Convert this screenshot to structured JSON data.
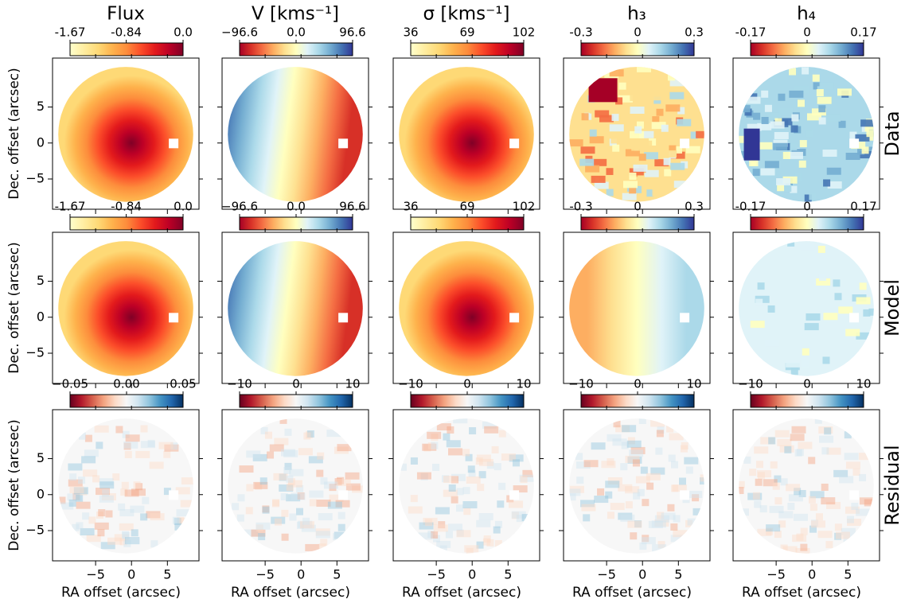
{
  "chart_data": [
    {
      "type": "heatmap",
      "title": "Flux",
      "ylabel": "Dec. offset (arcsec)",
      "xlim": [
        -11,
        9.4
      ],
      "ylim": [
        -9.2,
        11.8
      ],
      "xticks": [
        -5,
        0,
        5
      ],
      "yticks": [
        {
          "value": -5,
          "label": "−5"
        },
        0,
        5
      ],
      "colorbar": {
        "lim": [
          -1.67,
          0
        ],
        "ticks": [
          -1.67,
          -0.84,
          {
            "value": 0,
            "label": "0.0"
          }
        ],
        "colors": [
          "#ffffcc",
          "#ffeda0",
          "#fed976",
          "#feb24c",
          "#fd8d3c",
          "#fc4e2a",
          "#e31a1c",
          "#bd0026",
          "#800026"
        ]
      }
    },
    {
      "type": "heatmap",
      "title": "V [kms⁻¹]",
      "xlim": [
        -11,
        9.4
      ],
      "ylim": [
        -9.2,
        11.8
      ],
      "xticks": [
        -5,
        0,
        5
      ],
      "yticks": [
        -5,
        0,
        5
      ],
      "colorbar": {
        "lim": [
          -96.6,
          96.6
        ],
        "ticks": [
          {
            "value": -96.6,
            "label": "−96.6"
          },
          {
            "value": 0,
            "label": "0.0"
          },
          96.6
        ],
        "colors": [
          "#a50026",
          "#d73027",
          "#f46d43",
          "#fdae61",
          "#fee090",
          "#ffffbf",
          "#e0f3f8",
          "#abd9e9",
          "#74add1",
          "#4575b4",
          "#313695"
        ]
      }
    },
    {
      "type": "heatmap",
      "title": "σ [kms⁻¹]",
      "xlim": [
        -11,
        9.4
      ],
      "ylim": [
        -9.2,
        11.8
      ],
      "xticks": [
        -5,
        0,
        5
      ],
      "yticks": [
        -5,
        0,
        5
      ],
      "colorbar": {
        "lim": [
          36,
          102
        ],
        "ticks": [
          36,
          69,
          102
        ],
        "colors": [
          "#ffffcc",
          "#ffeda0",
          "#fed976",
          "#feb24c",
          "#fd8d3c",
          "#fc4e2a",
          "#e31a1c",
          "#bd0026",
          "#800026"
        ]
      }
    },
    {
      "type": "heatmap",
      "title": "h₃",
      "xlim": [
        -11,
        9.4
      ],
      "ylim": [
        -9.2,
        11.8
      ],
      "xticks": [
        -5,
        0,
        5
      ],
      "yticks": [
        -5,
        0,
        5
      ],
      "colorbar": {
        "lim": [
          -0.3,
          0.3
        ],
        "ticks": [
          -0.3,
          0,
          0.3
        ],
        "colors": [
          "#a50026",
          "#d73027",
          "#f46d43",
          "#fdae61",
          "#fee090",
          "#ffffbf",
          "#e0f3f8",
          "#abd9e9",
          "#74add1",
          "#4575b4",
          "#313695"
        ]
      }
    },
    {
      "type": "heatmap",
      "title": "h₄",
      "row_label": "Data",
      "xlim": [
        -11,
        9.4
      ],
      "ylim": [
        -9.2,
        11.8
      ],
      "xticks": [
        -5,
        0,
        5
      ],
      "yticks": [
        -5,
        0,
        5
      ],
      "colorbar": {
        "lim": [
          -0.17,
          0.17
        ],
        "ticks": [
          -0.17,
          0,
          0.17
        ],
        "colors": [
          "#a50026",
          "#d73027",
          "#f46d43",
          "#fdae61",
          "#fee090",
          "#ffffbf",
          "#e0f3f8",
          "#abd9e9",
          "#74add1",
          "#4575b4",
          "#313695"
        ]
      }
    },
    {
      "type": "heatmap",
      "ylabel": "Dec. offset (arcsec)",
      "xlim": [
        -11,
        9.4
      ],
      "ylim": [
        -9.2,
        11.8
      ],
      "xticks": [
        -5,
        0,
        5
      ],
      "yticks": [
        {
          "value": -5,
          "label": "−5"
        },
        0,
        5
      ],
      "colorbar": {
        "lim": [
          -1.67,
          0
        ],
        "ticks": [
          -1.67,
          -0.84,
          {
            "value": 0,
            "label": "0.0"
          }
        ],
        "colors": [
          "#ffffcc",
          "#ffeda0",
          "#fed976",
          "#feb24c",
          "#fd8d3c",
          "#fc4e2a",
          "#e31a1c",
          "#bd0026",
          "#800026"
        ]
      }
    },
    {
      "type": "heatmap",
      "xlim": [
        -11,
        9.4
      ],
      "ylim": [
        -9.2,
        11.8
      ],
      "xticks": [
        -5,
        0,
        5
      ],
      "yticks": [
        -5,
        0,
        5
      ],
      "colorbar": {
        "lim": [
          -96.6,
          96.6
        ],
        "ticks": [
          {
            "value": -96.6,
            "label": "−96.6"
          },
          {
            "value": 0,
            "label": "0.0"
          },
          96.6
        ],
        "colors": [
          "#a50026",
          "#d73027",
          "#f46d43",
          "#fdae61",
          "#fee090",
          "#ffffbf",
          "#e0f3f8",
          "#abd9e9",
          "#74add1",
          "#4575b4",
          "#313695"
        ]
      }
    },
    {
      "type": "heatmap",
      "xlim": [
        -11,
        9.4
      ],
      "ylim": [
        -9.2,
        11.8
      ],
      "xticks": [
        -5,
        0,
        5
      ],
      "yticks": [
        -5,
        0,
        5
      ],
      "colorbar": {
        "lim": [
          36,
          102
        ],
        "ticks": [
          36,
          69,
          102
        ],
        "colors": [
          "#ffffcc",
          "#ffeda0",
          "#fed976",
          "#feb24c",
          "#fd8d3c",
          "#fc4e2a",
          "#e31a1c",
          "#bd0026",
          "#800026"
        ]
      }
    },
    {
      "type": "heatmap",
      "xlim": [
        -11,
        9.4
      ],
      "ylim": [
        -9.2,
        11.8
      ],
      "xticks": [
        -5,
        0,
        5
      ],
      "yticks": [
        -5,
        0,
        5
      ],
      "colorbar": {
        "lim": [
          -0.3,
          0.3
        ],
        "ticks": [
          -0.3,
          0,
          0.3
        ],
        "colors": [
          "#a50026",
          "#d73027",
          "#f46d43",
          "#fdae61",
          "#fee090",
          "#ffffbf",
          "#e0f3f8",
          "#abd9e9",
          "#74add1",
          "#4575b4",
          "#313695"
        ]
      }
    },
    {
      "type": "heatmap",
      "row_label": "Model",
      "xlim": [
        -11,
        9.4
      ],
      "ylim": [
        -9.2,
        11.8
      ],
      "xticks": [
        -5,
        0,
        5
      ],
      "yticks": [
        -5,
        0,
        5
      ],
      "colorbar": {
        "lim": [
          -0.17,
          0.17
        ],
        "ticks": [
          -0.17,
          0,
          0.17
        ],
        "colors": [
          "#a50026",
          "#d73027",
          "#f46d43",
          "#fdae61",
          "#fee090",
          "#ffffbf",
          "#e0f3f8",
          "#abd9e9",
          "#74add1",
          "#4575b4",
          "#313695"
        ]
      }
    },
    {
      "type": "heatmap",
      "ylabel": "Dec. offset (arcsec)",
      "xlabel": "RA offset (arcsec)",
      "xlim": [
        -11,
        9.4
      ],
      "ylim": [
        -9.2,
        11.8
      ],
      "xticks": [
        {
          "value": -5,
          "label": "−5"
        },
        0,
        5
      ],
      "yticks": [
        {
          "value": -5,
          "label": "−5"
        },
        0,
        5
      ],
      "colorbar": {
        "lim": [
          -0.05,
          0.05
        ],
        "ticks": [
          {
            "value": -0.05,
            "label": "−0.05"
          },
          {
            "value": 0,
            "label": "0.00"
          },
          0.05
        ],
        "colors": [
          "#67001f",
          "#b2182b",
          "#d6604d",
          "#f4a582",
          "#fddbc7",
          "#f7f7f7",
          "#d1e5f0",
          "#92c5de",
          "#4393c3",
          "#2166ac",
          "#053061"
        ]
      }
    },
    {
      "type": "heatmap",
      "xlabel": "RA offset (arcsec)",
      "xlim": [
        -11,
        9.4
      ],
      "ylim": [
        -9.2,
        11.8
      ],
      "xticks": [
        {
          "value": -5,
          "label": "−5"
        },
        0,
        5
      ],
      "yticks": [
        -5,
        0,
        5
      ],
      "colorbar": {
        "lim": [
          -10,
          10
        ],
        "ticks": [
          {
            "value": -10,
            "label": "−10"
          },
          0,
          10
        ],
        "colors": [
          "#67001f",
          "#b2182b",
          "#d6604d",
          "#f4a582",
          "#fddbc7",
          "#f7f7f7",
          "#d1e5f0",
          "#92c5de",
          "#4393c3",
          "#2166ac",
          "#053061"
        ]
      }
    },
    {
      "type": "heatmap",
      "xlabel": "RA offset (arcsec)",
      "xlim": [
        -11,
        9.4
      ],
      "ylim": [
        -9.2,
        11.8
      ],
      "xticks": [
        {
          "value": -5,
          "label": "−5"
        },
        0,
        5
      ],
      "yticks": [
        -5,
        0,
        5
      ],
      "colorbar": {
        "lim": [
          -10,
          10
        ],
        "ticks": [
          {
            "value": -10,
            "label": "−10"
          },
          0,
          10
        ],
        "colors": [
          "#67001f",
          "#b2182b",
          "#d6604d",
          "#f4a582",
          "#fddbc7",
          "#f7f7f7",
          "#d1e5f0",
          "#92c5de",
          "#4393c3",
          "#2166ac",
          "#053061"
        ]
      }
    },
    {
      "type": "heatmap",
      "xlabel": "RA offset (arcsec)",
      "xlim": [
        -11,
        9.4
      ],
      "ylim": [
        -9.2,
        11.8
      ],
      "xticks": [
        {
          "value": -5,
          "label": "−5"
        },
        0,
        5
      ],
      "yticks": [
        -5,
        0,
        5
      ],
      "colorbar": {
        "lim": [
          -10,
          10
        ],
        "ticks": [
          {
            "value": -10,
            "label": "−10"
          },
          0,
          10
        ],
        "colors": [
          "#67001f",
          "#b2182b",
          "#d6604d",
          "#f4a582",
          "#fddbc7",
          "#f7f7f7",
          "#d1e5f0",
          "#92c5de",
          "#4393c3",
          "#2166ac",
          "#053061"
        ]
      }
    },
    {
      "type": "heatmap",
      "row_label": "Residual",
      "xlabel": "RA offset (arcsec)",
      "xlim": [
        -11,
        9.4
      ],
      "ylim": [
        -9.2,
        11.8
      ],
      "xticks": [
        {
          "value": -5,
          "label": "−5"
        },
        0,
        5
      ],
      "yticks": [
        -5,
        0,
        5
      ],
      "colorbar": {
        "lim": [
          -10,
          10
        ],
        "ticks": [
          {
            "value": -10,
            "label": "−10"
          },
          0,
          10
        ],
        "colors": [
          "#67001f",
          "#b2182b",
          "#d6604d",
          "#f4a582",
          "#fddbc7",
          "#f7f7f7",
          "#d1e5f0",
          "#92c5de",
          "#4393c3",
          "#2166ac",
          "#053061"
        ]
      }
    }
  ]
}
